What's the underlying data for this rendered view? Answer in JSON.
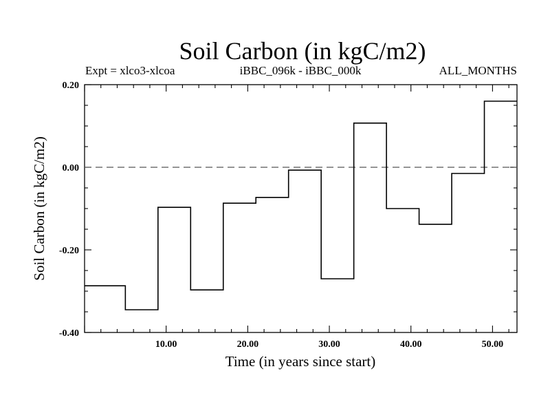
{
  "chart_data": {
    "type": "line",
    "step": true,
    "title": "Soil Carbon (in kgC/m2)",
    "subtitle_left": "Expt = xlco3-xlcoa",
    "subtitle_center": "iBBC_096k - iBBC_000k",
    "subtitle_right": "ALL_MONTHS",
    "xlabel": "Time (in years since start)",
    "ylabel": "Soil Carbon (in kgC/m2)",
    "xlim": [
      0,
      53
    ],
    "ylim": [
      -0.4,
      0.2
    ],
    "xticks": [
      10,
      20,
      30,
      40,
      50
    ],
    "xtick_labels": [
      "10.00",
      "20.00",
      "30.00",
      "40.00",
      "50.00"
    ],
    "yticks": [
      0.2,
      0.0,
      -0.2,
      -0.4
    ],
    "ytick_labels": [
      "0.20",
      "0.00",
      "-0.20",
      "-0.40"
    ],
    "reference_line": 0.0,
    "grid": false,
    "series": [
      {
        "x_start": [
          0,
          5,
          9,
          13,
          17,
          21,
          25,
          29,
          33,
          37,
          41,
          45,
          49
        ],
        "x_end": [
          5,
          9,
          13,
          17,
          21,
          25,
          29,
          33,
          37,
          41,
          45,
          49,
          53
        ],
        "values": [
          -0.287,
          -0.345,
          -0.097,
          -0.297,
          -0.087,
          -0.073,
          -0.007,
          -0.27,
          0.107,
          -0.1,
          -0.138,
          -0.015,
          0.16
        ]
      }
    ],
    "line_color": "#000000"
  }
}
